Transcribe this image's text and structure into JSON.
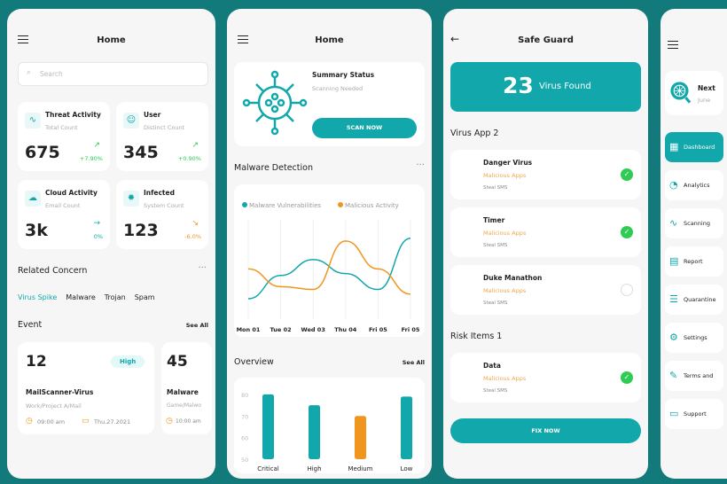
{
  "home1": {
    "title": "Home",
    "search_placeholder": "Search",
    "stats": [
      {
        "title": "Threat Activity",
        "sub": "Total Count",
        "value": "675",
        "change": "+7.90%",
        "dir": "up"
      },
      {
        "title": "User",
        "sub": "Distinct Count",
        "value": "345",
        "change": "+0.90%",
        "dir": "up"
      },
      {
        "title": "Cloud Activity",
        "sub": "Email Count",
        "value": "3k",
        "change": "0%",
        "dir": "flat"
      },
      {
        "title": "Infected",
        "sub": "System Count",
        "value": "123",
        "change": "-6.0%",
        "dir": "down"
      }
    ],
    "related": "Related Concern",
    "tags": [
      "Virus Spike",
      "Malware",
      "Trojan",
      "Spam"
    ],
    "event": "Event",
    "see_all": "See All",
    "events": [
      {
        "num": "12",
        "badge": "High",
        "name": "MailScanner-Virus",
        "path": "Work/Project A/Mail",
        "time": "09:00 am",
        "date": "Thu.27.2021"
      },
      {
        "num": "45",
        "name": "Malware",
        "path": "Game/Malwo",
        "time": "10:00 am"
      }
    ]
  },
  "home2": {
    "title": "Home",
    "summary_title": "Summary Status",
    "summary_sub": "Scanning Needed",
    "scan_btn": "SCAN NOW",
    "malware": "Malware Detection",
    "overview": "Overview",
    "see_all": "See All"
  },
  "chart_data": [
    {
      "type": "line",
      "x": [
        "Mon 01",
        "Tue 02",
        "Wed 03",
        "Thu 04",
        "Fri 05",
        "Fri 05"
      ],
      "series": [
        {
          "name": "Malware Vulnerabilities",
          "color": "#12a8ab",
          "values": [
            20,
            45,
            62,
            47,
            30,
            85
          ]
        },
        {
          "name": "Malicious Activity",
          "color": "#f0961e",
          "values": [
            52,
            33,
            30,
            82,
            52,
            25
          ]
        }
      ],
      "ylim": [
        0,
        100
      ],
      "legend": "top-left",
      "grid": "vertical"
    },
    {
      "type": "bar",
      "categories": [
        "Critical",
        "High",
        "Medium",
        "Low"
      ],
      "values": [
        80,
        75,
        70,
        79
      ],
      "colors": [
        "#12a8ab",
        "#12a8ab",
        "#f0961e",
        "#12a8ab"
      ],
      "yticks": [
        80,
        70,
        60,
        50
      ],
      "ylim": [
        50,
        82
      ]
    }
  ],
  "guard": {
    "title": "Safe Guard",
    "count": "23",
    "count_label": "Virus Found",
    "section1": "Virus App 2",
    "section2": "Risk Items 1",
    "fix_btn": "FIX NOW",
    "apps": [
      {
        "name": "Danger Virus",
        "type": "Malicious Apps",
        "desc": "Steal SMS",
        "checked": true
      },
      {
        "name": "Timer",
        "type": "Malicious Apps",
        "desc": "Steal SMS",
        "checked": true
      },
      {
        "name": "Duke Manathon",
        "type": "Malicious Apps",
        "desc": "Steal SMS",
        "checked": false
      }
    ],
    "risks": [
      {
        "name": "Data",
        "type": "Malicious Apps",
        "desc": "Steal SMS",
        "checked": true
      }
    ]
  },
  "menu": {
    "next_title": "Next",
    "next_sub": "June",
    "items": [
      {
        "label": "Dashboard",
        "icon": "grid"
      },
      {
        "label": "Analytics",
        "icon": "pie"
      },
      {
        "label": "Scanning",
        "icon": "pulse"
      },
      {
        "label": "Report",
        "icon": "document"
      },
      {
        "label": "Quarantine",
        "icon": "list"
      },
      {
        "label": "Settings",
        "icon": "gear"
      },
      {
        "label": "Terms and",
        "icon": "pencil"
      },
      {
        "label": "Support",
        "icon": "chat"
      }
    ]
  }
}
